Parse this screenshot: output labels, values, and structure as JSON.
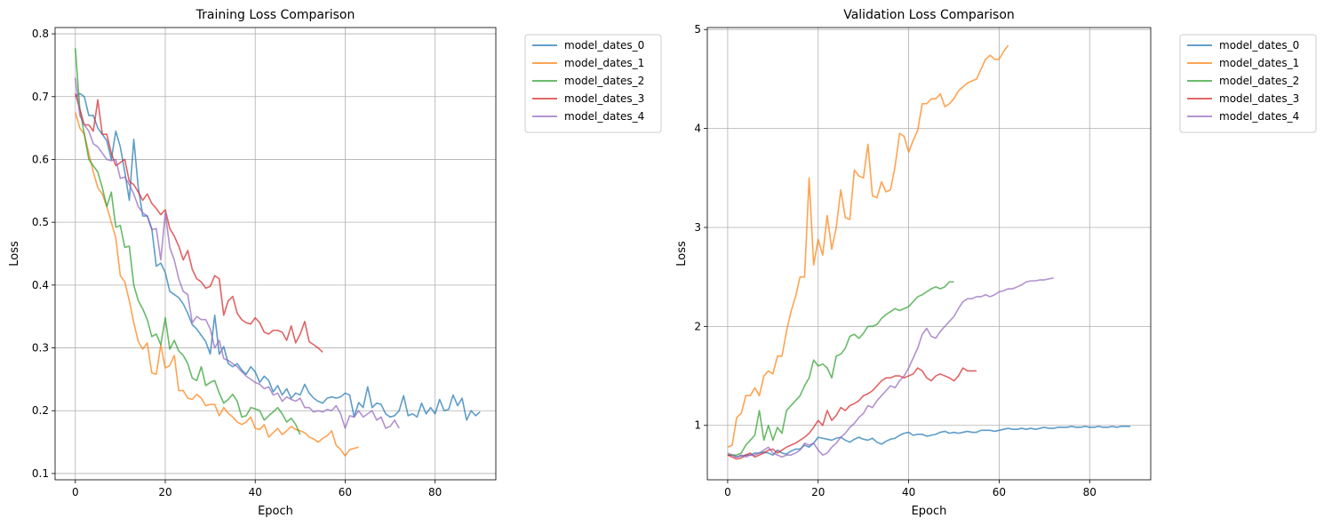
{
  "chart_data": [
    {
      "type": "line",
      "title": "Training Loss Comparison",
      "xlabel": "Epoch",
      "ylabel": "Loss",
      "xlim": [
        -4.5,
        93.5
      ],
      "ylim": [
        0.09,
        0.81
      ],
      "xticks": [
        0,
        20,
        40,
        60,
        80
      ],
      "yticks": [
        0.1,
        0.2,
        0.3,
        0.4,
        0.5,
        0.6,
        0.7,
        0.8
      ],
      "grid": true,
      "legend": "outside-top-right",
      "series": [
        {
          "name": "model_dates_0",
          "color": "#1f77b4",
          "x0": 0,
          "values": [
            0.7,
            0.705,
            0.7,
            0.67,
            0.67,
            0.65,
            0.64,
            0.63,
            0.6,
            0.645,
            0.62,
            0.58,
            0.535,
            0.632,
            0.555,
            0.51,
            0.51,
            0.49,
            0.43,
            0.435,
            0.42,
            0.39,
            0.385,
            0.38,
            0.37,
            0.355,
            0.337,
            0.33,
            0.32,
            0.31,
            0.29,
            0.352,
            0.29,
            0.302,
            0.275,
            0.27,
            0.275,
            0.265,
            0.258,
            0.27,
            0.262,
            0.245,
            0.255,
            0.248,
            0.23,
            0.24,
            0.225,
            0.235,
            0.22,
            0.228,
            0.225,
            0.242,
            0.228,
            0.22,
            0.215,
            0.212,
            0.22,
            0.222,
            0.22,
            0.222,
            0.228,
            0.225,
            0.19,
            0.213,
            0.205,
            0.238,
            0.205,
            0.212,
            0.21,
            0.195,
            0.19,
            0.192,
            0.2,
            0.224,
            0.192,
            0.195,
            0.19,
            0.212,
            0.195,
            0.205,
            0.195,
            0.218,
            0.2,
            0.202,
            0.225,
            0.208,
            0.22,
            0.185,
            0.2,
            0.192,
            0.198
          ]
        },
        {
          "name": "model_dates_1",
          "color": "#ff7f0e",
          "x0": 0,
          "values": [
            0.675,
            0.65,
            0.64,
            0.61,
            0.58,
            0.555,
            0.545,
            0.525,
            0.5,
            0.475,
            0.415,
            0.405,
            0.375,
            0.34,
            0.31,
            0.298,
            0.308,
            0.26,
            0.258,
            0.305,
            0.268,
            0.272,
            0.288,
            0.232,
            0.232,
            0.22,
            0.218,
            0.226,
            0.22,
            0.208,
            0.21,
            0.21,
            0.192,
            0.205,
            0.196,
            0.19,
            0.182,
            0.178,
            0.182,
            0.19,
            0.172,
            0.17,
            0.178,
            0.158,
            0.165,
            0.172,
            0.162,
            0.168,
            0.175,
            0.17,
            0.168,
            0.165,
            0.158,
            0.155,
            0.15,
            0.156,
            0.16,
            0.168,
            0.145,
            0.138,
            0.128,
            0.138,
            0.14,
            0.142
          ]
        },
        {
          "name": "model_dates_2",
          "color": "#2ca02c",
          "x0": 0,
          "values": [
            0.777,
            0.68,
            0.64,
            0.6,
            0.59,
            0.58,
            0.555,
            0.525,
            0.548,
            0.492,
            0.495,
            0.46,
            0.462,
            0.4,
            0.375,
            0.362,
            0.345,
            0.318,
            0.322,
            0.305,
            0.348,
            0.298,
            0.312,
            0.295,
            0.288,
            0.275,
            0.252,
            0.248,
            0.27,
            0.24,
            0.245,
            0.248,
            0.228,
            0.212,
            0.218,
            0.226,
            0.215,
            0.19,
            0.192,
            0.205,
            0.203,
            0.2,
            0.185,
            0.192,
            0.198,
            0.205,
            0.195,
            0.182,
            0.188,
            0.178,
            0.162
          ]
        },
        {
          "name": "model_dates_3",
          "color": "#d62728",
          "x0": 0,
          "values": [
            0.705,
            0.68,
            0.655,
            0.655,
            0.645,
            0.695,
            0.64,
            0.64,
            0.61,
            0.59,
            0.595,
            0.6,
            0.565,
            0.56,
            0.548,
            0.535,
            0.545,
            0.53,
            0.522,
            0.512,
            0.52,
            0.49,
            0.478,
            0.462,
            0.44,
            0.455,
            0.425,
            0.41,
            0.405,
            0.395,
            0.398,
            0.415,
            0.41,
            0.352,
            0.375,
            0.382,
            0.355,
            0.345,
            0.34,
            0.338,
            0.348,
            0.34,
            0.325,
            0.322,
            0.328,
            0.328,
            0.325,
            0.312,
            0.335,
            0.308,
            0.322,
            0.342,
            0.31,
            0.305,
            0.3,
            0.293
          ]
        },
        {
          "name": "model_dates_4",
          "color": "#9467bd",
          "x0": 0,
          "values": [
            0.73,
            0.67,
            0.655,
            0.645,
            0.625,
            0.62,
            0.61,
            0.6,
            0.598,
            0.6,
            0.57,
            0.572,
            0.56,
            0.545,
            0.525,
            0.515,
            0.51,
            0.488,
            0.49,
            0.44,
            0.515,
            0.46,
            0.44,
            0.41,
            0.39,
            0.385,
            0.34,
            0.35,
            0.345,
            0.345,
            0.33,
            0.3,
            0.312,
            0.283,
            0.28,
            0.275,
            0.27,
            0.262,
            0.255,
            0.25,
            0.245,
            0.242,
            0.235,
            0.238,
            0.225,
            0.228,
            0.215,
            0.222,
            0.218,
            0.215,
            0.22,
            0.205,
            0.205,
            0.198,
            0.2,
            0.198,
            0.202,
            0.2,
            0.208,
            0.195,
            0.172,
            0.192,
            0.19,
            0.2,
            0.19,
            0.195,
            0.2,
            0.185,
            0.19,
            0.172,
            0.175,
            0.185,
            0.172
          ]
        }
      ]
    },
    {
      "type": "line",
      "title": "Validation Loss Comparison",
      "xlabel": "Epoch",
      "ylabel": "Loss",
      "xlim": [
        -4.5,
        93.5
      ],
      "ylim": [
        0.45,
        5.02
      ],
      "xticks": [
        0,
        20,
        40,
        60,
        80
      ],
      "yticks": [
        1,
        2,
        3,
        4,
        5
      ],
      "grid": true,
      "legend": "outside-top-right",
      "series": [
        {
          "name": "model_dates_0",
          "color": "#1f77b4",
          "x0": 0,
          "values": [
            0.7,
            0.7,
            0.68,
            0.69,
            0.7,
            0.7,
            0.72,
            0.72,
            0.73,
            0.72,
            0.7,
            0.75,
            0.72,
            0.71,
            0.74,
            0.76,
            0.76,
            0.8,
            0.78,
            0.82,
            0.88,
            0.87,
            0.86,
            0.85,
            0.87,
            0.88,
            0.85,
            0.83,
            0.86,
            0.88,
            0.86,
            0.85,
            0.87,
            0.83,
            0.81,
            0.84,
            0.86,
            0.87,
            0.9,
            0.92,
            0.93,
            0.9,
            0.91,
            0.91,
            0.89,
            0.9,
            0.91,
            0.93,
            0.94,
            0.92,
            0.93,
            0.92,
            0.93,
            0.94,
            0.93,
            0.93,
            0.95,
            0.95,
            0.95,
            0.94,
            0.95,
            0.96,
            0.97,
            0.96,
            0.96,
            0.97,
            0.96,
            0.97,
            0.96,
            0.97,
            0.98,
            0.97,
            0.97,
            0.98,
            0.98,
            0.98,
            0.99,
            0.98,
            0.98,
            0.99,
            0.98,
            0.98,
            0.99,
            0.98,
            0.98,
            0.99,
            0.98,
            0.99,
            0.99,
            0.99
          ]
        },
        {
          "name": "model_dates_1",
          "color": "#ff7f0e",
          "x0": 0,
          "values": [
            0.78,
            0.8,
            1.08,
            1.12,
            1.3,
            1.3,
            1.38,
            1.3,
            1.5,
            1.55,
            1.52,
            1.7,
            1.7,
            1.95,
            2.15,
            2.3,
            2.5,
            2.5,
            3.5,
            2.62,
            2.88,
            2.72,
            3.12,
            2.78,
            3.0,
            3.38,
            3.1,
            3.08,
            3.58,
            3.52,
            3.5,
            3.84,
            3.32,
            3.3,
            3.46,
            3.36,
            3.38,
            3.62,
            3.95,
            3.92,
            3.76,
            3.88,
            3.98,
            4.25,
            4.25,
            4.3,
            4.3,
            4.35,
            4.22,
            4.25,
            4.3,
            4.38,
            4.42,
            4.46,
            4.48,
            4.5,
            4.6,
            4.7,
            4.74,
            4.7,
            4.7,
            4.78,
            4.84
          ]
        },
        {
          "name": "model_dates_2",
          "color": "#2ca02c",
          "x0": 0,
          "values": [
            0.7,
            0.7,
            0.7,
            0.72,
            0.8,
            0.85,
            0.9,
            1.15,
            0.85,
            1.0,
            0.85,
            0.98,
            0.92,
            1.15,
            1.2,
            1.25,
            1.3,
            1.4,
            1.48,
            1.66,
            1.6,
            1.62,
            1.58,
            1.48,
            1.7,
            1.72,
            1.78,
            1.9,
            1.92,
            1.88,
            1.93,
            2.0,
            2.0,
            2.02,
            2.08,
            2.12,
            2.15,
            2.18,
            2.16,
            2.18,
            2.2,
            2.25,
            2.3,
            2.32,
            2.35,
            2.38,
            2.4,
            2.38,
            2.4,
            2.45,
            2.45
          ]
        },
        {
          "name": "model_dates_3",
          "color": "#d62728",
          "x0": 0,
          "values": [
            0.7,
            0.68,
            0.66,
            0.67,
            0.7,
            0.72,
            0.68,
            0.7,
            0.72,
            0.75,
            0.76,
            0.72,
            0.75,
            0.78,
            0.8,
            0.82,
            0.85,
            0.88,
            0.92,
            0.98,
            1.05,
            1.0,
            1.15,
            1.05,
            1.1,
            1.18,
            1.15,
            1.2,
            1.22,
            1.25,
            1.3,
            1.32,
            1.35,
            1.4,
            1.45,
            1.48,
            1.48,
            1.5,
            1.5,
            1.48,
            1.5,
            1.52,
            1.58,
            1.55,
            1.48,
            1.45,
            1.5,
            1.52,
            1.5,
            1.48,
            1.45,
            1.5,
            1.58,
            1.55,
            1.55,
            1.55
          ]
        },
        {
          "name": "model_dates_4",
          "color": "#9467bd",
          "x0": 0,
          "values": [
            0.72,
            0.7,
            0.68,
            0.7,
            0.68,
            0.7,
            0.7,
            0.72,
            0.75,
            0.78,
            0.72,
            0.7,
            0.68,
            0.7,
            0.7,
            0.72,
            0.75,
            0.82,
            0.8,
            0.82,
            0.75,
            0.7,
            0.72,
            0.78,
            0.82,
            0.88,
            0.92,
            0.98,
            1.02,
            1.08,
            1.12,
            1.2,
            1.18,
            1.25,
            1.3,
            1.35,
            1.4,
            1.38,
            1.45,
            1.5,
            1.58,
            1.68,
            1.78,
            1.92,
            1.98,
            1.9,
            1.88,
            1.95,
            2.0,
            2.05,
            2.1,
            2.18,
            2.25,
            2.28,
            2.28,
            2.3,
            2.3,
            2.32,
            2.3,
            2.32,
            2.35,
            2.36,
            2.38,
            2.38,
            2.4,
            2.42,
            2.45,
            2.46,
            2.46,
            2.47,
            2.47,
            2.48,
            2.49
          ]
        }
      ]
    }
  ]
}
